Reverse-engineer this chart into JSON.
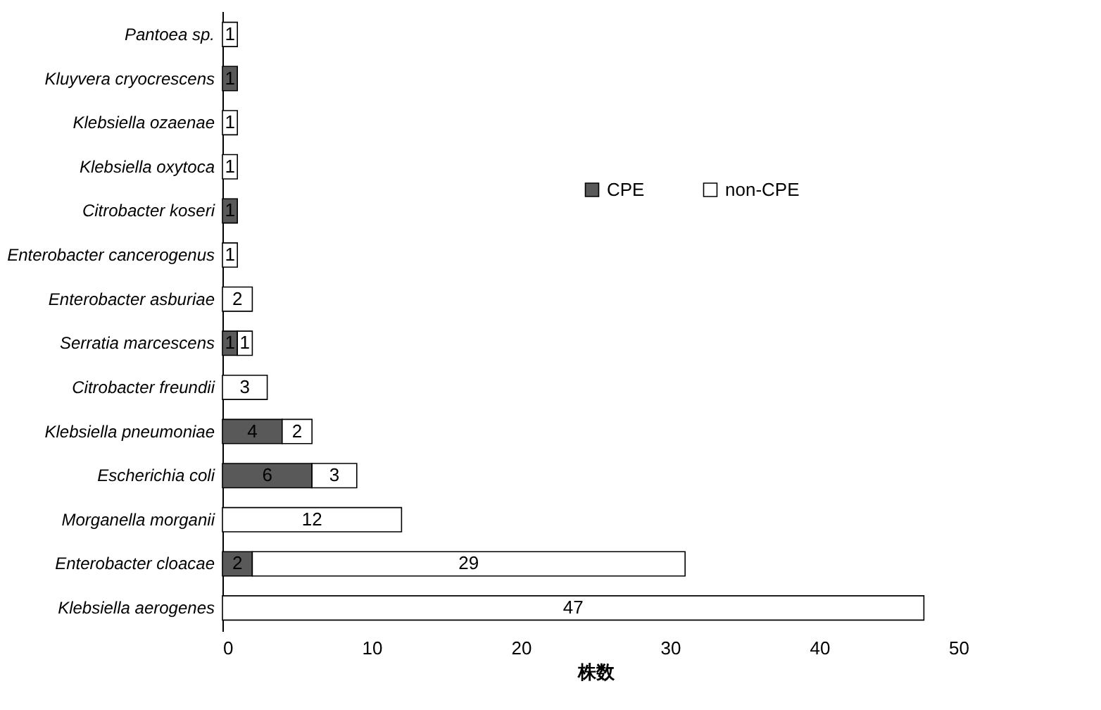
{
  "chart_data": {
    "type": "bar",
    "orientation": "horizontal",
    "stacked": true,
    "xlabel": "株数",
    "categories": [
      "Pantoea sp.",
      "Kluyvera cryocrescens",
      "Klebsiella ozaenae",
      "Klebsiella oxytoca",
      "Citrobacter koseri",
      "Enterobacter cancerogenus",
      "Enterobacter asburiae",
      "Serratia marcescens",
      "Citrobacter freundii",
      "Klebsiella pneumoniae",
      "Escherichia coli",
      "Morganella morganii",
      "Enterobacter cloacae",
      "Klebsiella aerogenes"
    ],
    "series": [
      {
        "name": "CPE",
        "color": "#595959",
        "values": [
          null,
          1,
          null,
          null,
          1,
          null,
          null,
          1,
          null,
          4,
          6,
          null,
          2,
          null
        ]
      },
      {
        "name": "non-CPE",
        "color": "#ffffff",
        "values": [
          1,
          null,
          1,
          1,
          null,
          1,
          2,
          1,
          3,
          2,
          3,
          12,
          29,
          47
        ]
      }
    ],
    "xlim": [
      0,
      50
    ],
    "xticks": [
      0,
      10,
      20,
      30,
      40,
      50
    ],
    "data_labels": true,
    "legend": "top right",
    "grid": false
  }
}
